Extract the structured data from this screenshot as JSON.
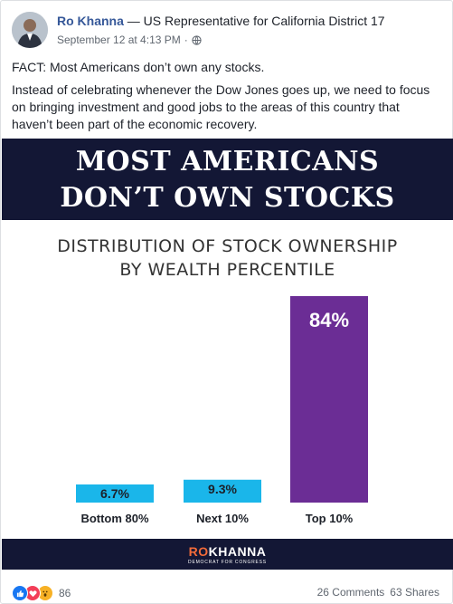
{
  "post": {
    "author_name": "Ro Khanna",
    "author_title": " — US Representative for California District 17",
    "timestamp": "September 12 at 4:13 PM",
    "separator": "·",
    "text_line1": "FACT: Most Americans don’t own any stocks.",
    "text_line2": "Instead of celebrating whenever the Dow Jones goes up, we need to focus on bringing investment and good jobs to the areas of this country that haven’t been part of the economic recovery."
  },
  "graphic": {
    "banner_line1": "MOST AMERICANS",
    "banner_line2": "DON’T OWN STOCKS",
    "logo_ro": "RO",
    "logo_khanna": "KHANNA",
    "logo_sub": "DEMOCRAT FOR CONGRESS"
  },
  "chart_data": {
    "type": "bar",
    "title_line1": "DISTRIBUTION OF STOCK OWNERSHIP",
    "title_line2": "BY WEALTH PERCENTILE",
    "categories": [
      "Bottom 80%",
      "Next 10%",
      "Top 10%"
    ],
    "values": [
      6.7,
      9.3,
      84
    ],
    "value_labels": [
      "6.7%",
      "9.3%",
      "84%"
    ],
    "colors": [
      "#1ab6ea",
      "#1ab6ea",
      "#6b2d95"
    ],
    "ylim": [
      0,
      84
    ]
  },
  "footer": {
    "reaction_count": "86",
    "comments": "26 Comments",
    "shares": "63 Shares"
  },
  "colors": {
    "name_link": "#365899",
    "banner_bg": "#131735",
    "logo_accent": "#f26b3a"
  }
}
